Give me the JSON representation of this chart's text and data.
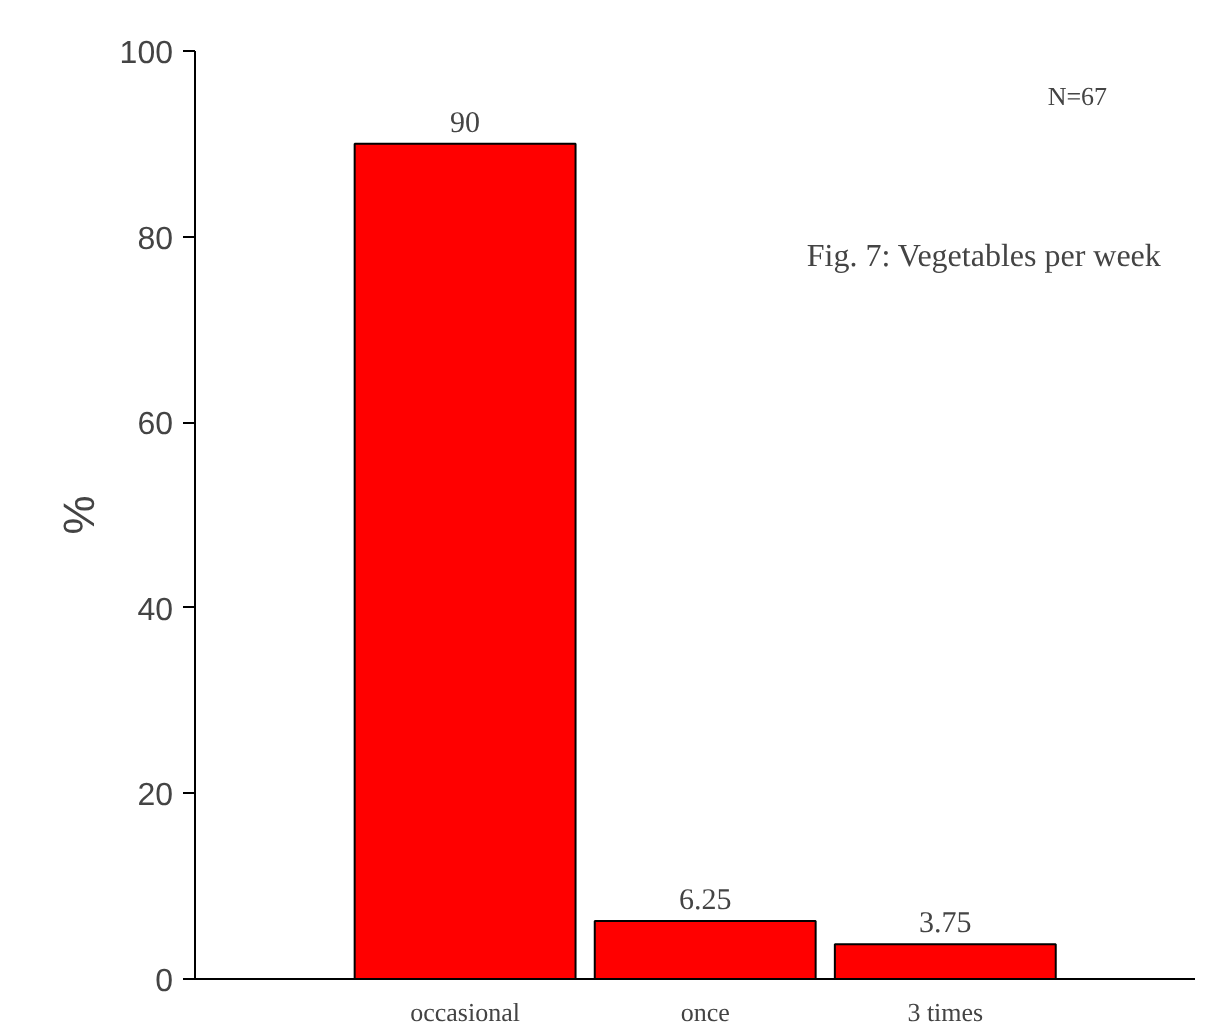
{
  "chart_data": {
    "type": "bar",
    "title": "Fig. 7: Vegetables per week",
    "ylabel": "%",
    "categories": [
      "occasional",
      "once",
      "3 times"
    ],
    "values": [
      90,
      6.25,
      3.75
    ],
    "color": "#ff0000",
    "data_labels": true,
    "ylim": [
      0,
      100
    ],
    "yticks": [
      0,
      20,
      40,
      60,
      80,
      100
    ],
    "grid": false,
    "annotations": [
      "N=67"
    ]
  }
}
